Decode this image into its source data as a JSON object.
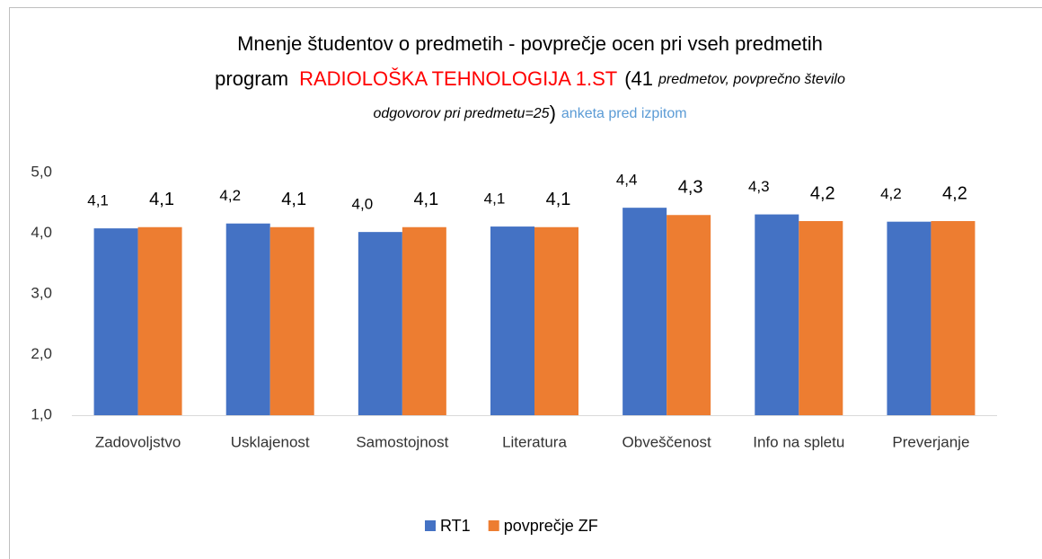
{
  "chart_data": {
    "type": "bar",
    "title": {
      "line1": "Mnenje študentov o predmetih - povprečje ocen pri vseh predmetih",
      "line2": [
        "program",
        "RADIOLOŠKA TEHNOLOGIJA 1.ST",
        "(41",
        "predmetov, povprečno število"
      ],
      "line3": [
        "odgovorov pri predmetu=25",
        ")",
        "anketa pred izpitom"
      ]
    },
    "categories": [
      "Zadovoljstvo",
      "Usklajenost",
      "Samostojnost",
      "Literatura",
      "Obveščenost",
      "Info na spletu",
      "Preverjanje"
    ],
    "series": [
      {
        "name": "RT1",
        "color": "#4472c4",
        "label_color": "#ff0000",
        "values": [
          4.08,
          4.16,
          4.02,
          4.11,
          4.42,
          4.31,
          4.19
        ],
        "value_labels": [
          "4,1",
          "4,2",
          "4,0",
          "4,1",
          "4,4",
          "4,3",
          "4,2"
        ]
      },
      {
        "name": "povprečje ZF",
        "color": "#ed7d31",
        "label_color": "#000000",
        "values": [
          4.1,
          4.1,
          4.1,
          4.1,
          4.3,
          4.2,
          4.2
        ],
        "value_labels": [
          "4,1",
          "4,1",
          "4,1",
          "4,1",
          "4,3",
          "4,2",
          "4,2"
        ]
      }
    ],
    "ylim": [
      1,
      5
    ],
    "yticks": [
      {
        "value": 1,
        "label": "1,0"
      },
      {
        "value": 2,
        "label": "2,0"
      },
      {
        "value": 3,
        "label": "3,0"
      },
      {
        "value": 4,
        "label": "4,0"
      },
      {
        "value": 5,
        "label": "5,0"
      }
    ],
    "grid": false,
    "legend": "bottom"
  }
}
